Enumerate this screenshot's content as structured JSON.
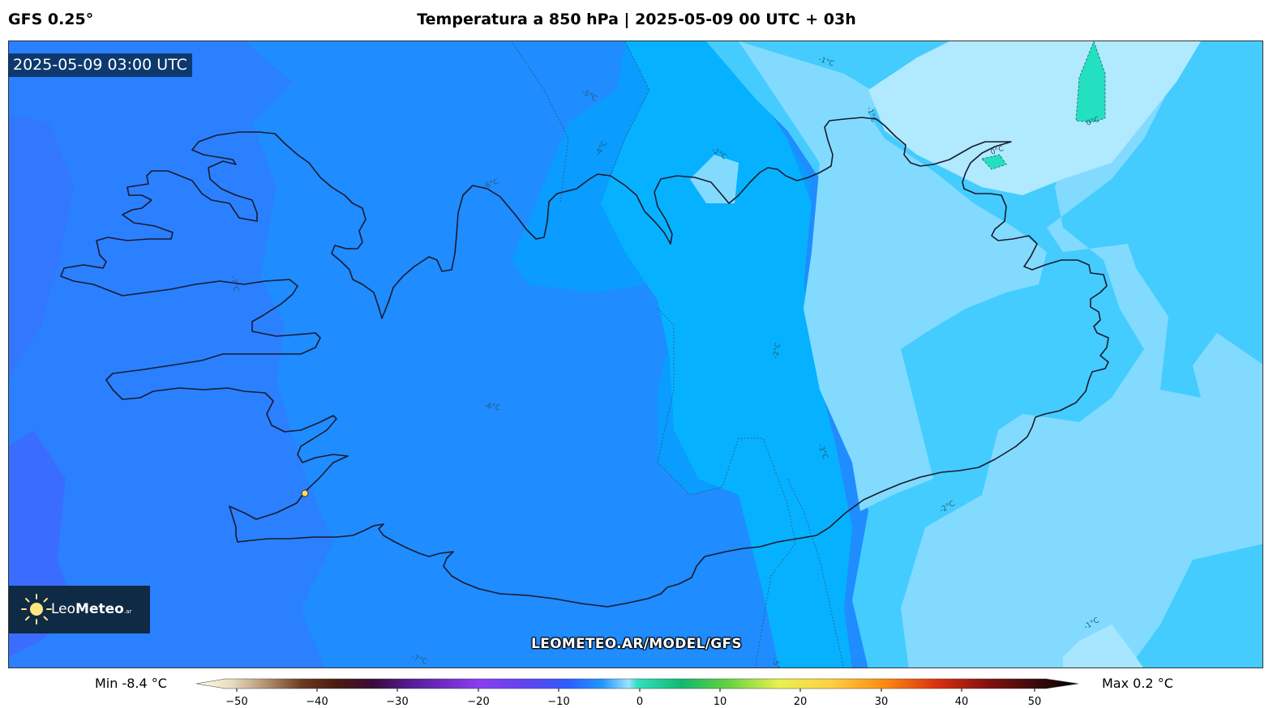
{
  "header": {
    "model": "GFS 0.25°",
    "title": "Temperatura a 850 hPa | 2025-05-09 00 UTC + 03h"
  },
  "map": {
    "valid_time": "2025-05-09 03:00 UTC",
    "watermark_url": "LEOMETEO.AR/MODEL/GFS",
    "logo": {
      "name_part1": "Leo",
      "name_part2": "Meteo",
      "suffix": ".ar"
    },
    "contour_labels": [
      "-1°C",
      "0°C",
      "0°C",
      "-1°C",
      "-2°C",
      "-2°C",
      "-2°C",
      "-3°C",
      "-4°C",
      "-5°C",
      "-6°C",
      "-6°C",
      "-7°C",
      "-7°C",
      "-5°C",
      "-1°C"
    ],
    "colors": {
      "fill_minus7": "#3377ff",
      "fill_minus6": "#1f8cff",
      "fill_minus5": "#0a9cff",
      "fill_minus4": "#06b2ff",
      "fill_minus3": "#44ccff",
      "fill_minus2": "#82dbff",
      "fill_minus1": "#b1e9ff",
      "fill_zero": "#22e0c0",
      "coastline": "#1a1a2e",
      "station": "#ffdd55"
    }
  },
  "legend": {
    "min_label": "Min -8.4 °C",
    "max_label": "Max 0.2 °C",
    "ticks": [
      "−50",
      "−40",
      "−30",
      "−20",
      "−10",
      "0",
      "10",
      "20",
      "30",
      "40",
      "50"
    ]
  }
}
